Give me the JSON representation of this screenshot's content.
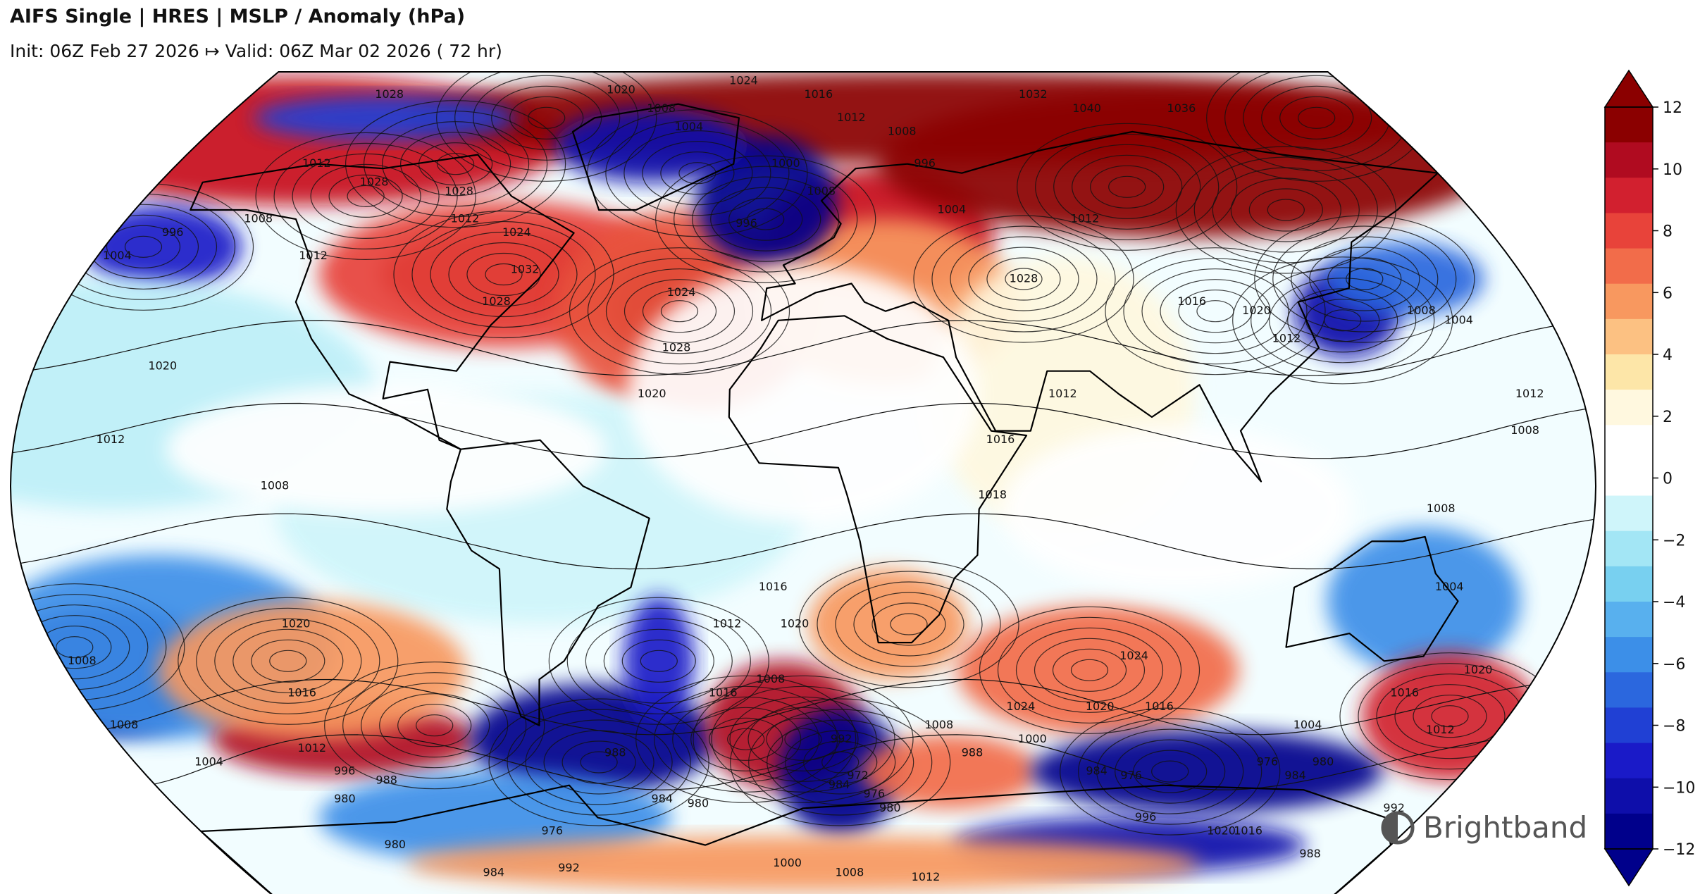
{
  "header": {
    "title": "AIFS Single | HRES | MSLP / Anomaly (hPa)",
    "subtitle": "Init: 06Z Feb 27 2026 ↦ Valid: 06Z Mar 02 2026 ( 72 hr)"
  },
  "map": {
    "projection": "Robinson",
    "contour_labels": [
      {
        "text": "1028",
        "lon": -135,
        "lat": 85
      },
      {
        "text": "1020",
        "lon": -60,
        "lat": 86
      },
      {
        "text": "1024",
        "lon": -20,
        "lat": 88
      },
      {
        "text": "1016",
        "lon": 5,
        "lat": 85
      },
      {
        "text": "1008",
        "lon": -45,
        "lat": 82
      },
      {
        "text": "1004",
        "lon": -35,
        "lat": 78
      },
      {
        "text": "1012",
        "lon": 15,
        "lat": 80
      },
      {
        "text": "1008",
        "lon": 30,
        "lat": 77
      },
      {
        "text": "996",
        "lon": 35,
        "lat": 70
      },
      {
        "text": "1032",
        "lon": 75,
        "lat": 85
      },
      {
        "text": "1040",
        "lon": 90,
        "lat": 82
      },
      {
        "text": "1036",
        "lon": 120,
        "lat": 82
      },
      {
        "text": "1012",
        "lon": -140,
        "lat": 70
      },
      {
        "text": "1028",
        "lon": -120,
        "lat": 66
      },
      {
        "text": "1028",
        "lon": -95,
        "lat": 64
      },
      {
        "text": "1008",
        "lon": -145,
        "lat": 58
      },
      {
        "text": "1012",
        "lon": -90,
        "lat": 58
      },
      {
        "text": "1024",
        "lon": -75,
        "lat": 55
      },
      {
        "text": "996",
        "lon": -15,
        "lat": 57
      },
      {
        "text": "1008",
        "lon": 5,
        "lat": 64
      },
      {
        "text": "1000",
        "lon": -5,
        "lat": 70
      },
      {
        "text": "1004",
        "lon": 40,
        "lat": 60
      },
      {
        "text": "1012",
        "lon": 75,
        "lat": 58
      },
      {
        "text": "1028",
        "lon": 55,
        "lat": 45
      },
      {
        "text": "996",
        "lon": -165,
        "lat": 55
      },
      {
        "text": "1004",
        "lon": -175,
        "lat": 50
      },
      {
        "text": "1012",
        "lon": -125,
        "lat": 50
      },
      {
        "text": "1032",
        "lon": -70,
        "lat": 47
      },
      {
        "text": "1028",
        "lon": -75,
        "lat": 40
      },
      {
        "text": "1024",
        "lon": -30,
        "lat": 42
      },
      {
        "text": "1028",
        "lon": -30,
        "lat": 30
      },
      {
        "text": "1016",
        "lon": 95,
        "lat": 40
      },
      {
        "text": "1020",
        "lon": 110,
        "lat": 38
      },
      {
        "text": "1012",
        "lon": 115,
        "lat": 32
      },
      {
        "text": "1008",
        "lon": 150,
        "lat": 38
      },
      {
        "text": "1004",
        "lon": 158,
        "lat": 36
      },
      {
        "text": "1020",
        "lon": -150,
        "lat": 26
      },
      {
        "text": "1020",
        "lon": -35,
        "lat": 20
      },
      {
        "text": "1012",
        "lon": 60,
        "lat": 20
      },
      {
        "text": "1016",
        "lon": 45,
        "lat": 10
      },
      {
        "text": "1012",
        "lon": 168,
        "lat": 20
      },
      {
        "text": "1008",
        "lon": 165,
        "lat": 12
      },
      {
        "text": "1012",
        "lon": -158,
        "lat": 10
      },
      {
        "text": "1008",
        "lon": -120,
        "lat": 0
      },
      {
        "text": "1018",
        "lon": 43,
        "lat": -2
      },
      {
        "text": "1008",
        "lon": 145,
        "lat": -5
      },
      {
        "text": "1016",
        "lon": -7,
        "lat": -22
      },
      {
        "text": "1020",
        "lon": -2,
        "lat": -30
      },
      {
        "text": "1012",
        "lon": -18,
        "lat": -30
      },
      {
        "text": "1008",
        "lon": -8,
        "lat": -42
      },
      {
        "text": "1004",
        "lon": 150,
        "lat": -22
      },
      {
        "text": "1024",
        "lon": 80,
        "lat": -37
      },
      {
        "text": "1020",
        "lon": -120,
        "lat": -30
      },
      {
        "text": "1016",
        "lon": -125,
        "lat": -45
      },
      {
        "text": "1016",
        "lon": -20,
        "lat": -45
      },
      {
        "text": "1016",
        "lon": 90,
        "lat": -48
      },
      {
        "text": "1020",
        "lon": 75,
        "lat": -48
      },
      {
        "text": "1024",
        "lon": 55,
        "lat": -48
      },
      {
        "text": "1016",
        "lon": 150,
        "lat": -45
      },
      {
        "text": "1020",
        "lon": 165,
        "lat": -40
      },
      {
        "text": "1012",
        "lon": 165,
        "lat": -53
      },
      {
        "text": "1008",
        "lon": 35,
        "lat": -52
      },
      {
        "text": "1004",
        "lon": 130,
        "lat": -52
      },
      {
        "text": "1000",
        "lon": 60,
        "lat": -55
      },
      {
        "text": "988",
        "lon": 45,
        "lat": -58
      },
      {
        "text": "984",
        "lon": 80,
        "lat": -62
      },
      {
        "text": "976",
        "lon": 90,
        "lat": -63
      },
      {
        "text": "992",
        "lon": 10,
        "lat": -55
      },
      {
        "text": "984",
        "lon": 10,
        "lat": -65
      },
      {
        "text": "972",
        "lon": 15,
        "lat": -63
      },
      {
        "text": "976",
        "lon": 20,
        "lat": -67
      },
      {
        "text": "980",
        "lon": 25,
        "lat": -70
      },
      {
        "text": "1008",
        "lon": -175,
        "lat": -52
      },
      {
        "text": "1004",
        "lon": -160,
        "lat": -60
      },
      {
        "text": "1012",
        "lon": -130,
        "lat": -57
      },
      {
        "text": "996",
        "lon": -125,
        "lat": -62
      },
      {
        "text": "988",
        "lon": -115,
        "lat": -64
      },
      {
        "text": "980",
        "lon": -130,
        "lat": -68
      },
      {
        "text": "980",
        "lon": -125,
        "lat": -78
      },
      {
        "text": "988",
        "lon": -50,
        "lat": -58
      },
      {
        "text": "984",
        "lon": -40,
        "lat": -68
      },
      {
        "text": "980",
        "lon": -30,
        "lat": -69
      },
      {
        "text": "976",
        "lon": -75,
        "lat": -75
      },
      {
        "text": "984",
        "lon": -100,
        "lat": -84
      },
      {
        "text": "992",
        "lon": -75,
        "lat": -83
      },
      {
        "text": "1000",
        "lon": -5,
        "lat": -82
      },
      {
        "text": "1008",
        "lon": 15,
        "lat": -84
      },
      {
        "text": "1012",
        "lon": 40,
        "lat": -85
      },
      {
        "text": "996",
        "lon": 100,
        "lat": -72
      },
      {
        "text": "1020",
        "lon": 125,
        "lat": -75
      },
      {
        "text": "1016",
        "lon": 133,
        "lat": -75
      },
      {
        "text": "992",
        "lon": 170,
        "lat": -70
      },
      {
        "text": "988",
        "lon": 158,
        "lat": -80
      },
      {
        "text": "984",
        "lon": 135,
        "lat": -63
      },
      {
        "text": "976",
        "lon": 125,
        "lat": -60
      },
      {
        "text": "980",
        "lon": 140,
        "lat": -60
      },
      {
        "text": "1008",
        "lon": -175,
        "lat": -38
      }
    ],
    "highs": [
      {
        "lon": -75,
        "lat": 46
      },
      {
        "lon": -30,
        "lat": 38
      },
      {
        "lon": 55,
        "lat": 45
      },
      {
        "lon": 90,
        "lat": 65
      },
      {
        "lon": 130,
        "lat": 60
      },
      {
        "lon": -120,
        "lat": 63
      },
      {
        "lon": 25,
        "lat": -30
      },
      {
        "lon": 70,
        "lat": -40
      },
      {
        "lon": -125,
        "lat": -38
      },
      {
        "lon": -95,
        "lat": -52
      },
      {
        "lon": 0,
        "lat": -55
      },
      {
        "lon": 165,
        "lat": -50
      },
      {
        "lon": -80,
        "lat": 80
      },
      {
        "lon": 160,
        "lat": 80
      }
    ],
    "lows": [
      {
        "lon": -170,
        "lat": 52
      },
      {
        "lon": -30,
        "lat": 68
      },
      {
        "lon": -10,
        "lat": 58
      },
      {
        "lon": 130,
        "lat": 36
      },
      {
        "lon": 140,
        "lat": 45
      },
      {
        "lon": -35,
        "lat": -38
      },
      {
        "lon": -55,
        "lat": -60
      },
      {
        "lon": -175,
        "lat": -35
      },
      {
        "lon": 10,
        "lat": -60
      },
      {
        "lon": 100,
        "lat": -62
      },
      {
        "lon": -100,
        "lat": 70
      },
      {
        "lon": 100,
        "lat": 38
      },
      {
        "lon": -15,
        "lat": -55
      }
    ]
  },
  "colorbar": {
    "ticks": [
      "12",
      "10",
      "8",
      "6",
      "4",
      "2",
      "0",
      "−2",
      "−4",
      "−6",
      "−8",
      "−10",
      "−12"
    ],
    "colors": [
      "#8b0000",
      "#b00b20",
      "#d2202f",
      "#e8433a",
      "#f26c4a",
      "#f8985f",
      "#fcc182",
      "#fde6a8",
      "#fff8df",
      "#ffffff",
      "#ffffff",
      "#cff5fa",
      "#a3e6f5",
      "#78d0f0",
      "#58b0ee",
      "#3c8fe8",
      "#2b67de",
      "#2040d4",
      "#1a1ac8",
      "#0e0eaa",
      "#00008b"
    ]
  },
  "logo": {
    "name": "Brightband",
    "icon": "brightband-logo-icon"
  }
}
